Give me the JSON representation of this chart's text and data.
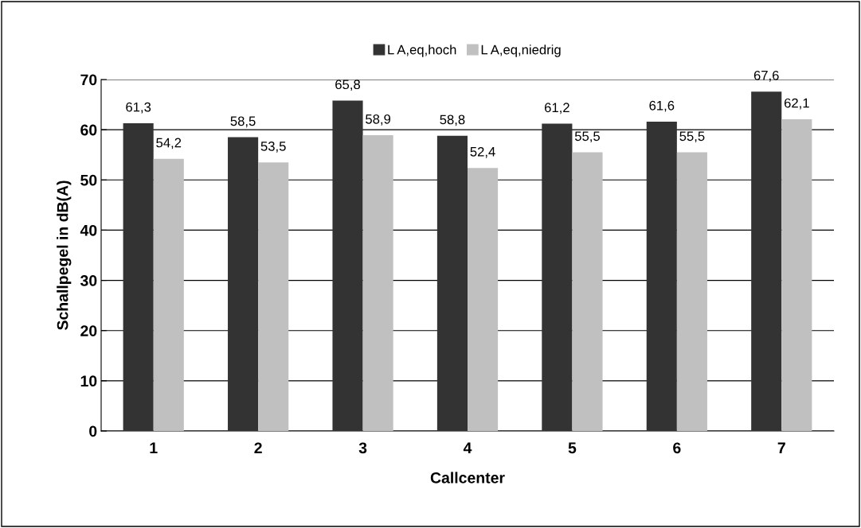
{
  "chart_data": {
    "type": "bar",
    "xlabel": "Callcenter",
    "ylabel": "Schallpegel in dB(A)",
    "categories": [
      "1",
      "2",
      "3",
      "4",
      "5",
      "6",
      "7"
    ],
    "series": [
      {
        "name": "L A,eq,hoch",
        "color": "#333333",
        "values": [
          61.3,
          58.5,
          65.8,
          58.8,
          61.2,
          61.6,
          67.6
        ],
        "value_labels": [
          "61,3",
          "58,5",
          "65,8",
          "58,8",
          "61,2",
          "61,6",
          "67,6"
        ]
      },
      {
        "name": "L A,eq,niedrig",
        "color": "#c0c0c0",
        "values": [
          54.2,
          53.5,
          58.9,
          52.4,
          55.5,
          55.5,
          62.1
        ],
        "value_labels": [
          "54,2",
          "53,5",
          "58,9",
          "52,4",
          "55,5",
          "55,5",
          "62,1"
        ]
      }
    ],
    "ylim": [
      0,
      70
    ],
    "yticks": [
      0,
      10,
      20,
      30,
      40,
      50,
      60,
      70
    ],
    "grid": "y",
    "legend": "top"
  }
}
